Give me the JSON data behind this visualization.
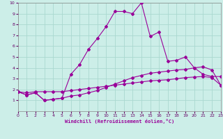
{
  "xlabel": "Windchill (Refroidissement éolien,°C)",
  "xlim": [
    0,
    23
  ],
  "ylim": [
    0,
    10
  ],
  "xticks": [
    0,
    1,
    2,
    3,
    4,
    5,
    6,
    7,
    8,
    9,
    10,
    11,
    12,
    13,
    14,
    15,
    16,
    17,
    18,
    19,
    20,
    21,
    22,
    23
  ],
  "yticks": [
    1,
    2,
    3,
    4,
    5,
    6,
    7,
    8,
    9,
    10
  ],
  "bg_color": "#cceee8",
  "grid_color": "#aad8d0",
  "line_color": "#990099",
  "line1_x": [
    0,
    1,
    2,
    3,
    4,
    5,
    6,
    7,
    8,
    9,
    10,
    11,
    12,
    13,
    14,
    15,
    16,
    17,
    18,
    19,
    20,
    21,
    22,
    23
  ],
  "line1_y": [
    1.8,
    1.7,
    1.8,
    1.8,
    1.8,
    1.8,
    1.9,
    2.0,
    2.1,
    2.2,
    2.3,
    2.4,
    2.5,
    2.6,
    2.7,
    2.8,
    2.85,
    2.9,
    3.0,
    3.1,
    3.15,
    3.2,
    3.1,
    2.4
  ],
  "line2_x": [
    0,
    1,
    2,
    3,
    4,
    5,
    6,
    7,
    8,
    9,
    10,
    11,
    12,
    13,
    14,
    15,
    16,
    17,
    18,
    19,
    20,
    21,
    22,
    23
  ],
  "line2_y": [
    1.8,
    1.5,
    1.7,
    1.0,
    1.1,
    1.2,
    1.4,
    1.5,
    1.7,
    1.9,
    2.2,
    2.5,
    2.8,
    3.1,
    3.3,
    3.5,
    3.6,
    3.7,
    3.8,
    3.85,
    4.0,
    4.1,
    3.8,
    2.4
  ],
  "line3_x": [
    0,
    1,
    2,
    3,
    4,
    5,
    6,
    7,
    8,
    9,
    10,
    11,
    12,
    13,
    14,
    15,
    16,
    17,
    18,
    19,
    20,
    21,
    22,
    23
  ],
  "line3_y": [
    1.8,
    1.5,
    1.7,
    1.0,
    1.1,
    1.2,
    3.4,
    4.3,
    5.7,
    6.7,
    7.8,
    9.2,
    9.2,
    9.0,
    10.0,
    6.9,
    7.3,
    4.6,
    4.7,
    5.0,
    4.0,
    3.4,
    3.2,
    3.2
  ],
  "marker": "D",
  "markersize": 2.0,
  "linewidth": 0.8
}
